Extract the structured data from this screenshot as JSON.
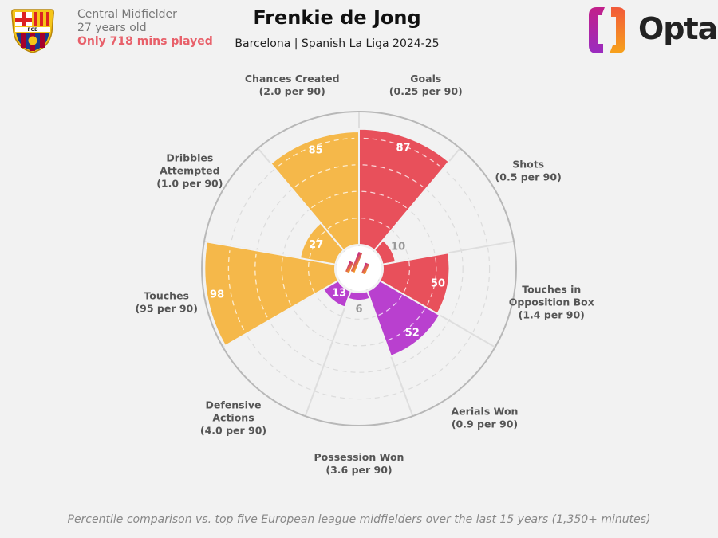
{
  "header": {
    "player_name": "Frenkie de Jong",
    "subtitle": "Barcelona | Spanish La Liga 2024-25",
    "position": "Central Midfielder",
    "age": "27 years old",
    "minutes_note": "Only 718 mins played",
    "club_crest": "FC Barcelona crest",
    "crest_text": "FCB",
    "brand": "Opta"
  },
  "footer": "Percentile comparison vs. top five European league midfielders over the last 15 years (1,350+ minutes)",
  "colors": {
    "attack": "#e8505b",
    "defence": "#b940cf",
    "possession": "#f5b84a",
    "background": "#f2f2f2"
  },
  "chart_data": {
    "type": "pie",
    "subtype": "polar-area (pizza) percentile chart",
    "range": [
      0,
      100
    ],
    "rings": [
      20,
      40,
      60,
      80,
      100
    ],
    "categories": [
      {
        "name": "Goals",
        "rate": "(0.25 per 90)",
        "percentile": 87,
        "group": "attack"
      },
      {
        "name": "Shots",
        "rate": "(0.5 per 90)",
        "percentile": 10,
        "group": "attack"
      },
      {
        "name": "Touches in Opposition Box",
        "rate": "(1.4 per 90)",
        "percentile": 50,
        "group": "attack"
      },
      {
        "name": "Aerials Won",
        "rate": "(0.9 per 90)",
        "percentile": 52,
        "group": "defence"
      },
      {
        "name": "Possession Won",
        "rate": "(3.6 per 90)",
        "percentile": 6,
        "group": "defence"
      },
      {
        "name": "Defensive Actions",
        "rate": "(4.0 per 90)",
        "percentile": 13,
        "group": "defence"
      },
      {
        "name": "Touches",
        "rate": "(95 per 90)",
        "percentile": 98,
        "group": "possession"
      },
      {
        "name": "Dribbles Attempted",
        "rate": "(1.0 per 90)",
        "percentile": 27,
        "group": "possession"
      },
      {
        "name": "Chances Created",
        "rate": "(2.0 per 90)",
        "percentile": 85,
        "group": "possession"
      }
    ]
  }
}
